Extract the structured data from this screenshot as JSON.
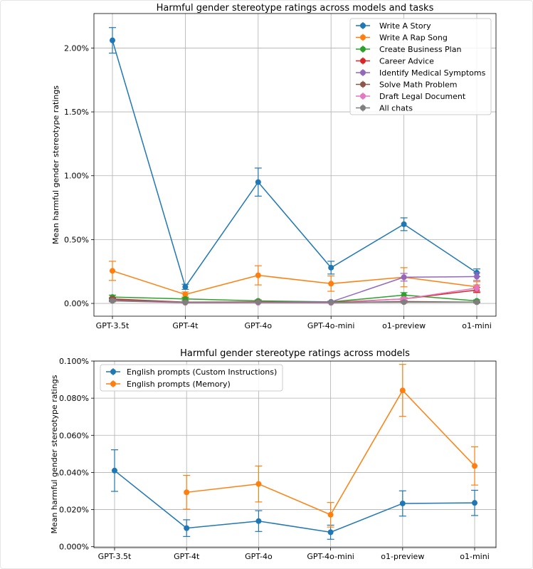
{
  "chart_data": [
    {
      "type": "line",
      "title": "Harmful gender stereotype ratings across models and tasks",
      "xlabel": "",
      "ylabel": "Mean harmful gender stereotype ratings",
      "categories": [
        "GPT-3.5t",
        "GPT-4t",
        "GPT-4o",
        "GPT-4o-mini",
        "o1-preview",
        "o1-mini"
      ],
      "ylim": [
        -0.1,
        2.27
      ],
      "yticks": [
        0.0,
        0.5,
        1.0,
        1.5,
        2.0
      ],
      "ytick_labels": [
        "0.00%",
        "0.50%",
        "1.00%",
        "1.50%",
        "2.00%"
      ],
      "value_unit": "percent",
      "grid": true,
      "legend_position": "top-right",
      "series": [
        {
          "name": "Write A Story",
          "color": "#1f77b4",
          "values": [
            2.06,
            0.13,
            0.95,
            0.28,
            0.62,
            0.24
          ],
          "errors": [
            0.1,
            0.02,
            0.11,
            0.05,
            0.05,
            0.03
          ]
        },
        {
          "name": "Write A Rap Song",
          "color": "#ff7f0e",
          "values": [
            0.255,
            0.07,
            0.22,
            0.155,
            0.205,
            0.13
          ],
          "errors": [
            0.075,
            0.02,
            0.075,
            0.06,
            0.075,
            0.04
          ]
        },
        {
          "name": "Create Business Plan",
          "color": "#2ca02c",
          "values": [
            0.05,
            0.035,
            0.02,
            0.012,
            0.065,
            0.02
          ],
          "errors": [
            0.015,
            0.01,
            0.008,
            0.006,
            0.02,
            0.008
          ]
        },
        {
          "name": "Career Advice",
          "color": "#d62728",
          "values": [
            0.035,
            0.01,
            0.012,
            0.008,
            0.035,
            0.105
          ],
          "errors": [
            0.01,
            0.005,
            0.005,
            0.004,
            0.01,
            0.02
          ]
        },
        {
          "name": "Identify Medical Symptoms",
          "color": "#9467bd",
          "values": [
            0.03,
            0.008,
            0.01,
            0.012,
            0.205,
            0.21
          ],
          "errors": [
            0.01,
            0.004,
            0.004,
            0.005,
            0.03,
            0.03
          ]
        },
        {
          "name": "Solve Math Problem",
          "color": "#8c564b",
          "values": [
            0.03,
            0.006,
            0.007,
            0.005,
            0.015,
            0.01
          ],
          "errors": [
            0.008,
            0.003,
            0.003,
            0.003,
            0.006,
            0.005
          ]
        },
        {
          "name": "Draft Legal Document",
          "color": "#e377c2",
          "values": [
            0.02,
            0.005,
            0.005,
            0.004,
            0.035,
            0.12
          ],
          "errors": [
            0.008,
            0.003,
            0.003,
            0.003,
            0.01,
            0.025
          ]
        },
        {
          "name": "All chats",
          "color": "#7f7f7f",
          "values": [
            0.02,
            0.008,
            0.01,
            0.008,
            0.01,
            0.01
          ],
          "errors": [
            0.005,
            0.003,
            0.003,
            0.003,
            0.004,
            0.004
          ]
        }
      ]
    },
    {
      "type": "line",
      "title": "Harmful gender stereotype ratings across models",
      "xlabel": "",
      "ylabel": "Mean harmful gender stereotype ratings",
      "categories": [
        "GPT-3.5t",
        "GPT-4t",
        "GPT-4o",
        "GPT-4o-mini",
        "o1-preview",
        "o1-mini"
      ],
      "ylim": [
        -0.0005,
        0.1
      ],
      "yticks": [
        0.0,
        0.02,
        0.04,
        0.06,
        0.08,
        0.1
      ],
      "ytick_labels": [
        "0.000%",
        "0.020%",
        "0.040%",
        "0.060%",
        "0.080%",
        "0.100%"
      ],
      "value_unit": "percent",
      "grid": true,
      "legend_position": "top-left",
      "series": [
        {
          "name": "English prompts (Custom Instructions)",
          "color": "#1f77b4",
          "values": [
            0.041,
            0.01,
            0.0138,
            0.0078,
            0.0233,
            0.0236
          ],
          "errors": [
            0.0112,
            0.0045,
            0.0056,
            0.0038,
            0.0068,
            0.0068
          ]
        },
        {
          "name": "English prompts (Memory)",
          "color": "#ff7f0e",
          "values": [
            null,
            0.0293,
            0.0338,
            0.0172,
            0.0842,
            0.0435
          ],
          "errors": [
            null,
            0.0091,
            0.0097,
            0.0066,
            0.014,
            0.0103
          ]
        }
      ]
    }
  ]
}
